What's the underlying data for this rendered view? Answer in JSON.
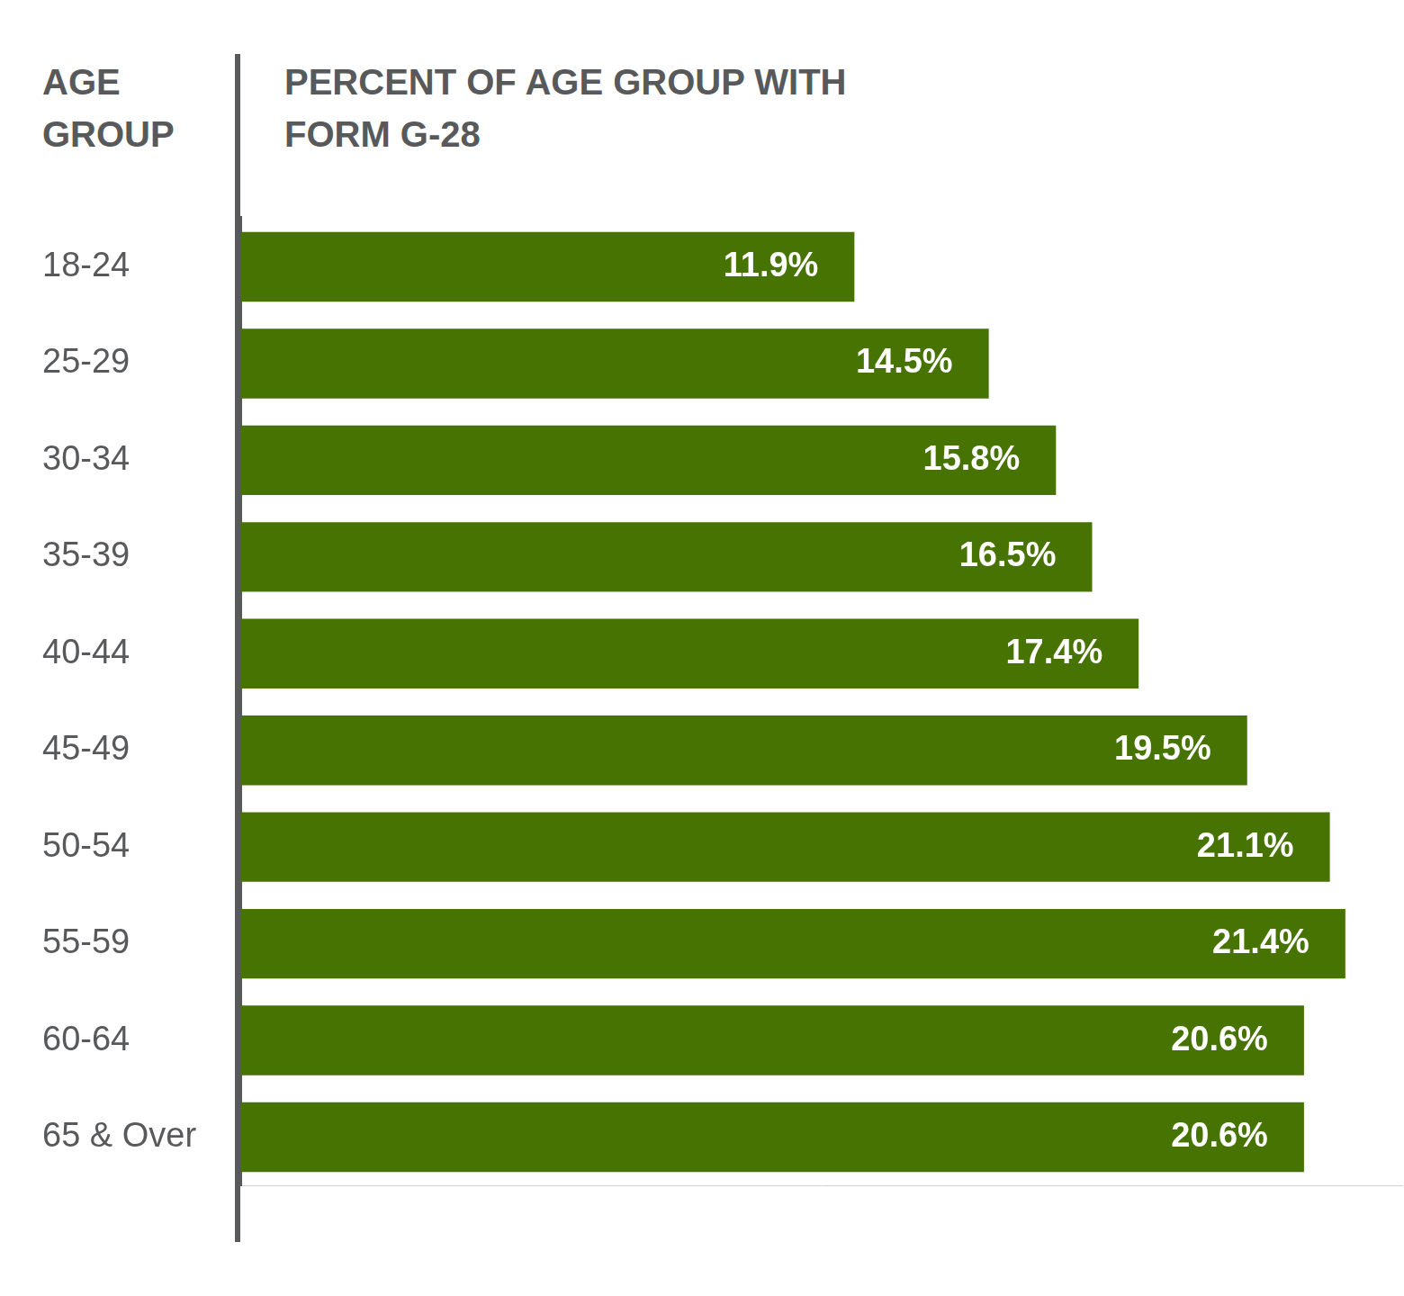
{
  "chart_data": {
    "type": "bar",
    "orientation": "horizontal",
    "y_label": "AGE GROUP",
    "x_label": "PERCENT OF AGE GROUP WITH FORM G-28",
    "categories": [
      "18-24",
      "25-29",
      "30-34",
      "35-39",
      "40-44",
      "45-49",
      "50-54",
      "55-59",
      "60-64",
      "65 & Over"
    ],
    "values": [
      11.9,
      14.5,
      15.8,
      16.5,
      17.4,
      19.5,
      21.1,
      21.4,
      20.6,
      20.6
    ],
    "value_labels": [
      "11.9%",
      "14.5%",
      "15.8%",
      "16.5%",
      "17.4%",
      "19.5%",
      "21.1%",
      "21.4%",
      "20.6%",
      "20.6%"
    ],
    "color": "#467302",
    "xlim": [
      0,
      22.5
    ],
    "grid": false,
    "data_labels": true,
    "tick_labels": "y"
  }
}
